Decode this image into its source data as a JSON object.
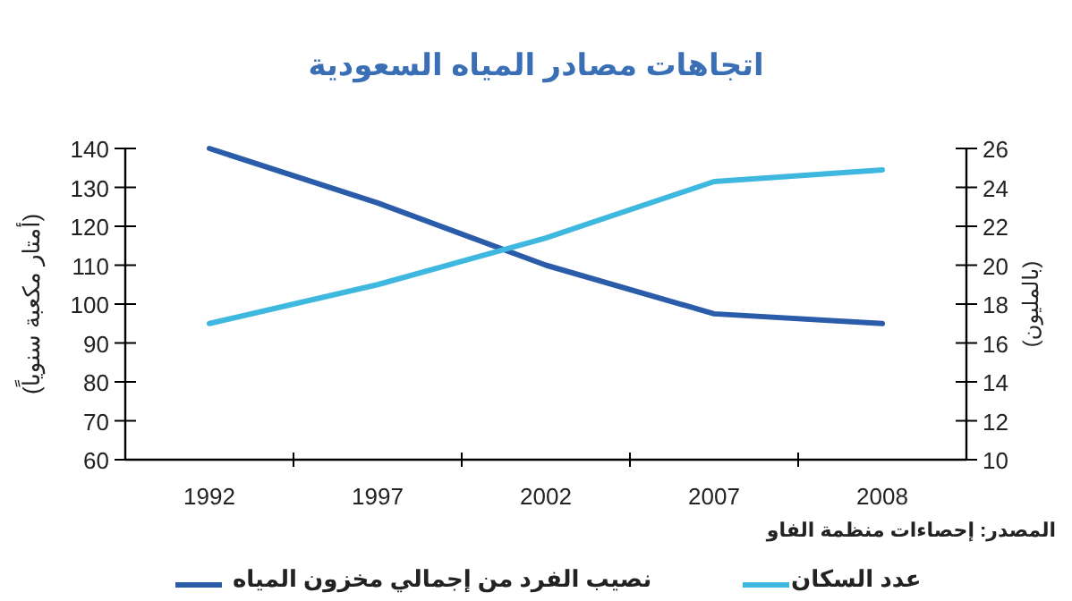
{
  "chart_data": {
    "type": "line",
    "title": "اتجاهات مصادر المياه السعودية",
    "ylabel": "(أمتار مكعبة سنوياً)",
    "y2label": "(بالمليون)",
    "categories": [
      "1992",
      "1997",
      "2002",
      "2007",
      "2008"
    ],
    "series": [
      {
        "name": "نصيب الفرد من إجمالي مخزون المياه",
        "color": "#2a5caa",
        "values": [
          140,
          126,
          110,
          97.5,
          95
        ]
      },
      {
        "name": "عدد السكان",
        "color": "#3fb8e0",
        "axis": "y2",
        "values": [
          17,
          19,
          21.4,
          24.3,
          24.9
        ]
      }
    ],
    "ylim": [
      60,
      140
    ],
    "yticks": [
      60,
      70,
      80,
      90,
      100,
      110,
      120,
      130,
      140
    ],
    "y2lim": [
      10,
      26
    ],
    "y2ticks": [
      10,
      12,
      14,
      16,
      18,
      20,
      22,
      24,
      26
    ],
    "legend": "bottom",
    "annotations": [
      "المصدر: إحصاءات منظمة الفاو"
    ]
  }
}
